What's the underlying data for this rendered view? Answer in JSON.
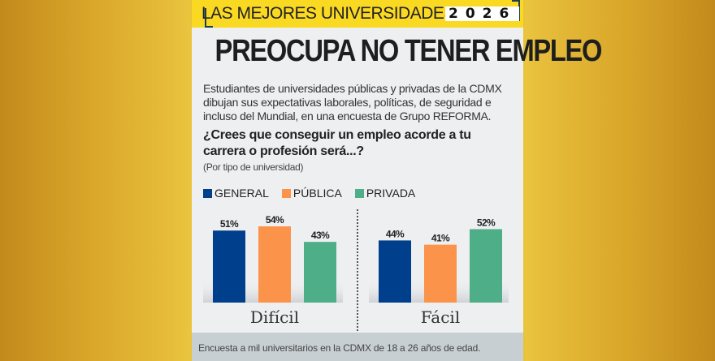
{
  "banner": {
    "title": "LAS MEJORES UNIVERSIDADES",
    "year": "2026"
  },
  "headline": "PREOCUPA NO TENER EMPLEO",
  "intro": "Estudiantes de universidades públicas y privadas de la CDMX dibujan sus expectativas laborales, políticas, de seguridad e incluso del Mundial, en una encuesta de Grupo REFORMA.",
  "footer": "Encuesta a mil universitarios en la CDMX de 18 a 26 años de edad.",
  "colors": {
    "general": "#003f8c",
    "publica": "#fb944a",
    "privada": "#4eae87",
    "banner": "#fad922",
    "background": "#ebc63f"
  },
  "chart_data": {
    "type": "bar",
    "title": "¿Crees que conseguir un empleo acorde a tu carrera o profesión será...?",
    "subtitle": "(Por tipo de universidad)",
    "categories": [
      "Difícil",
      "Fácil"
    ],
    "series": [
      {
        "name": "GENERAL",
        "values": [
          51,
          44
        ],
        "labels": [
          "51%",
          "44%"
        ],
        "color": "#003f8c"
      },
      {
        "name": "PÚBLICA",
        "values": [
          54,
          41
        ],
        "labels": [
          "54%",
          "41%"
        ],
        "color": "#fb944a"
      },
      {
        "name": "PRIVADA",
        "values": [
          43,
          52
        ],
        "labels": [
          "43%",
          "52%"
        ],
        "color": "#4eae87"
      }
    ],
    "unit": "%",
    "ylim": [
      0,
      54
    ],
    "legend": "top-left",
    "grid": false,
    "xlabel": "",
    "ylabel": ""
  }
}
